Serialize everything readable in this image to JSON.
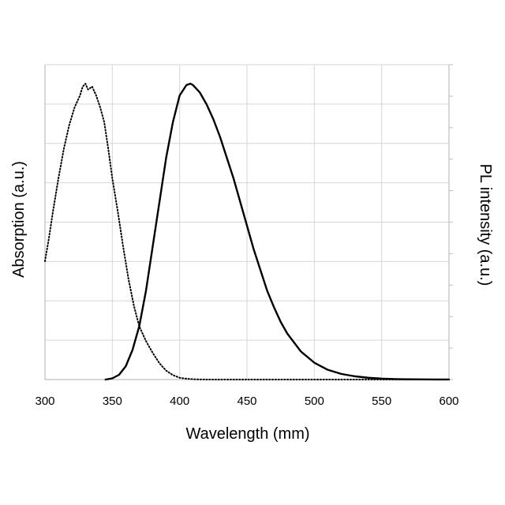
{
  "chart_data": {
    "type": "line",
    "title": "",
    "xlabel": "Wavelength (mm)",
    "ylabel_left": "Absorption (a.u.)",
    "ylabel_right": "PL intensity  (a.u.)",
    "xlim": [
      300,
      600
    ],
    "x_ticks": [
      300,
      350,
      400,
      450,
      500,
      550,
      600
    ],
    "ylim": [
      0,
      1
    ],
    "grid": true,
    "legend": "none",
    "series": [
      {
        "axis": "left",
        "style": "dotted",
        "color": "#000000",
        "x": [
          300,
          303,
          306,
          310,
          314,
          318,
          322,
          326,
          328,
          330,
          332,
          335,
          338,
          341,
          344,
          347,
          350,
          354,
          358,
          362,
          366,
          370,
          375,
          380,
          385,
          390,
          395,
          400,
          405,
          410,
          420,
          440,
          470,
          500,
          550,
          600
        ],
        "y": [
          0.4,
          0.48,
          0.57,
          0.68,
          0.78,
          0.86,
          0.92,
          0.96,
          0.99,
          1.0,
          0.98,
          0.99,
          0.96,
          0.92,
          0.87,
          0.78,
          0.68,
          0.57,
          0.45,
          0.34,
          0.25,
          0.18,
          0.13,
          0.09,
          0.055,
          0.03,
          0.015,
          0.006,
          0.003,
          0.001,
          0,
          0,
          0,
          0,
          0,
          0
        ]
      },
      {
        "axis": "right",
        "style": "solid",
        "color": "#000000",
        "x": [
          345,
          350,
          355,
          360,
          365,
          370,
          375,
          380,
          385,
          390,
          395,
          400,
          405,
          408,
          410,
          415,
          420,
          425,
          430,
          435,
          440,
          445,
          450,
          455,
          460,
          465,
          470,
          475,
          480,
          490,
          500,
          510,
          520,
          530,
          540,
          550,
          560,
          570,
          580,
          590,
          600
        ],
        "y": [
          0.0,
          0.004,
          0.016,
          0.045,
          0.1,
          0.18,
          0.3,
          0.45,
          0.6,
          0.75,
          0.87,
          0.96,
          0.995,
          1.0,
          0.995,
          0.97,
          0.93,
          0.88,
          0.82,
          0.75,
          0.68,
          0.6,
          0.52,
          0.44,
          0.37,
          0.3,
          0.245,
          0.195,
          0.155,
          0.095,
          0.057,
          0.033,
          0.019,
          0.011,
          0.006,
          0.003,
          0.0015,
          0.0008,
          0.0004,
          0.0002,
          0.0001
        ]
      }
    ]
  }
}
